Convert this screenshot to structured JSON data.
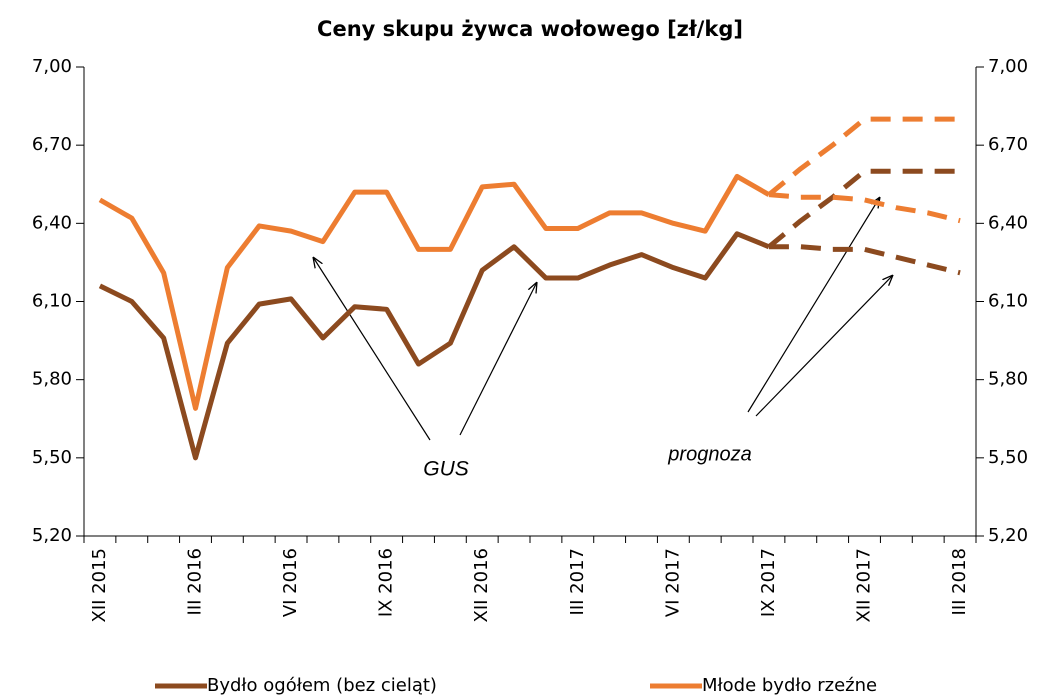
{
  "chart_data": {
    "type": "line",
    "title": "Ceny skupu żywca wołowego [zł/kg]",
    "categories": [
      "XII 2015",
      null,
      null,
      "III 2016",
      null,
      null,
      "VI 2016",
      null,
      null,
      "IX 2016",
      null,
      null,
      "XII 2016",
      null,
      null,
      "III 2017",
      null,
      null,
      "VI 2017",
      null,
      null,
      "IX 2017",
      null,
      null,
      "XII 2017",
      null,
      null,
      "III 2018"
    ],
    "series": [
      {
        "name": "Bydło ogółem (bez cieląt)",
        "color": "#8c4a1f",
        "values": [
          6.16,
          6.1,
          5.96,
          5.5,
          5.94,
          6.09,
          6.11,
          5.96,
          6.08,
          6.07,
          5.86,
          5.94,
          6.22,
          6.31,
          6.19,
          6.19,
          6.24,
          6.28,
          6.23,
          6.19,
          6.36,
          6.31,
          null,
          null,
          null,
          null,
          null,
          null
        ]
      },
      {
        "name": "Młode bydło rzeźne",
        "color": "#ed7d31",
        "values": [
          6.49,
          6.42,
          6.21,
          5.69,
          6.23,
          6.39,
          6.37,
          6.33,
          6.52,
          6.52,
          6.3,
          6.3,
          6.54,
          6.55,
          6.38,
          6.38,
          6.44,
          6.44,
          6.4,
          6.37,
          6.58,
          6.51,
          null,
          null,
          null,
          null,
          null,
          null
        ]
      },
      {
        "color": "#8c4a1f",
        "dashed": true,
        "values": [
          null,
          null,
          null,
          null,
          null,
          null,
          null,
          null,
          null,
          null,
          null,
          null,
          null,
          null,
          null,
          null,
          null,
          null,
          null,
          null,
          null,
          6.31,
          6.41,
          6.5,
          6.6,
          6.6,
          6.6,
          6.6
        ]
      },
      {
        "color": "#8c4a1f",
        "dashed": true,
        "values": [
          null,
          null,
          null,
          null,
          null,
          null,
          null,
          null,
          null,
          null,
          null,
          null,
          null,
          null,
          null,
          null,
          null,
          null,
          null,
          null,
          null,
          6.31,
          6.31,
          6.3,
          6.3,
          6.27,
          6.24,
          6.21
        ]
      },
      {
        "color": "#ed7d31",
        "dashed": true,
        "values": [
          null,
          null,
          null,
          null,
          null,
          null,
          null,
          null,
          null,
          null,
          null,
          null,
          null,
          null,
          null,
          null,
          null,
          null,
          null,
          null,
          null,
          6.51,
          6.61,
          6.7,
          6.8,
          6.8,
          6.8,
          6.8
        ]
      },
      {
        "color": "#ed7d31",
        "dashed": true,
        "values": [
          null,
          null,
          null,
          null,
          null,
          null,
          null,
          null,
          null,
          null,
          null,
          null,
          null,
          null,
          null,
          null,
          null,
          null,
          null,
          null,
          null,
          6.51,
          6.5,
          6.5,
          6.49,
          6.46,
          6.44,
          6.41
        ]
      }
    ],
    "ylim": [
      5.2,
      7.0
    ],
    "yticks": [
      {
        "value": 5.2,
        "label": "5,20"
      },
      {
        "value": 5.5,
        "label": "5,50"
      },
      {
        "value": 5.8,
        "label": "5,80"
      },
      {
        "value": 6.1,
        "label": "6,10"
      },
      {
        "value": 6.4,
        "label": "6,40"
      },
      {
        "value": 6.7,
        "label": "6,70"
      },
      {
        "value": 7.0,
        "label": "7,00"
      }
    ],
    "y2lim": [
      5.2,
      7.0
    ],
    "y2ticks": [
      {
        "value": 5.2,
        "label": "5,20"
      },
      {
        "value": 5.5,
        "label": "5,50"
      },
      {
        "value": 5.8,
        "label": "5,80"
      },
      {
        "value": 6.1,
        "label": "6,10"
      },
      {
        "value": 6.4,
        "label": "6,40"
      },
      {
        "value": 6.7,
        "label": "6,70"
      },
      {
        "value": 7.0,
        "label": "7,00"
      }
    ],
    "annotations": [
      "GUS",
      "prognoza"
    ],
    "legend": "bottom"
  }
}
